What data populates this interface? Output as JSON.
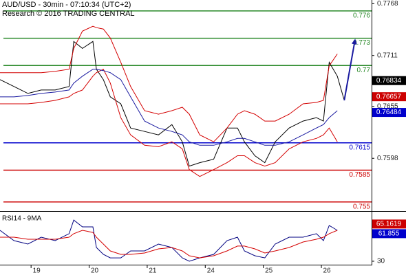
{
  "chart_data": [
    {
      "type": "line",
      "title": "AUD/USD - 30min - 07:10:34 (UTC+2)",
      "subtitle": "Research © 2016 TRADING CENTRAL",
      "x": [
        -0.63,
        -0.39,
        -0.15,
        0.08,
        0.32,
        0.56,
        0.64,
        0.79,
        0.97,
        1.03,
        1.15,
        1.27,
        1.45,
        1.62,
        1.86,
        2.1,
        2.33,
        2.51,
        2.63,
        2.81,
        3.05,
        3.28,
        3.46,
        3.58,
        3.76,
        3.93,
        4.11,
        4.35,
        4.59,
        4.82,
        4.94,
        5.04,
        5.18,
        5.3
      ],
      "xlim": [
        -0.63,
        5.77
      ],
      "ylim": [
        0.754,
        0.7772
      ],
      "yticks": [
        0.7768,
        0.7711,
        0.7655,
        0.7598
      ],
      "series": [
        {
          "color": "#000000",
          "values": [
            0.76845,
            0.76769,
            0.76693,
            0.76731,
            0.76731,
            0.76769,
            0.77264,
            0.77188,
            0.77264,
            0.76959,
            0.76845,
            0.76655,
            0.76579,
            0.76313,
            0.76275,
            0.76237,
            0.76351,
            0.76161,
            0.75894,
            0.75932,
            0.7597,
            0.76313,
            0.76313,
            0.76161,
            0.76008,
            0.75932,
            0.76161,
            0.76313,
            0.76389,
            0.76427,
            0.76389,
            0.77035,
            0.76883,
            0.76617
          ]
        },
        {
          "color": "#d40000",
          "values": [
            0.76921,
            0.76921,
            0.76921,
            0.76921,
            0.76936,
            0.76959,
            0.77188,
            0.77378,
            0.77431,
            0.77416,
            0.77401,
            0.77302,
            0.77035,
            0.76769,
            0.76503,
            0.76465,
            0.76503,
            0.76541,
            0.76465,
            0.76237,
            0.76161,
            0.76313,
            0.76465,
            0.76503,
            0.76465,
            0.76389,
            0.76389,
            0.76465,
            0.76579,
            0.76594,
            0.76617,
            0.76997,
            0.77127,
            null
          ]
        },
        {
          "color": "#d40000",
          "values": [
            0.76579,
            0.76579,
            0.76579,
            0.76594,
            0.76617,
            0.76655,
            0.76693,
            0.76731,
            0.76883,
            0.76921,
            0.76959,
            0.76807,
            0.76427,
            0.76237,
            0.76123,
            0.76107,
            0.76161,
            0.76084,
            0.75856,
            0.7578,
            0.75856,
            0.75932,
            0.76008,
            0.76008,
            0.75932,
            0.75894,
            0.75932,
            0.76084,
            0.76161,
            0.76199,
            0.76237,
            0.76313,
            0.76161,
            null
          ]
        },
        {
          "color": "#1a1aa0",
          "values": [
            0.76655,
            0.76655,
            0.7667,
            0.76693,
            0.76708,
            0.76731,
            0.76807,
            0.76883,
            0.76959,
            0.76959,
            0.76944,
            0.76921,
            0.76845,
            0.76655,
            0.76389,
            0.76313,
            0.76275,
            0.76237,
            0.76161,
            0.76123,
            0.76123,
            0.76161,
            0.76199,
            0.76199,
            0.76161,
            0.76123,
            0.76123,
            0.76161,
            0.76237,
            0.76313,
            0.76351,
            0.76427,
            0.76503,
            null
          ]
        }
      ],
      "forecast": {
        "color": "#1a1aa0",
        "x": [
          5.3,
          5.48
        ],
        "values": [
          0.76617,
          0.77264
        ]
      },
      "levels": [
        {
          "value": 0.776,
          "color": "#2a8a2a"
        },
        {
          "value": 0.773,
          "color": "#2a8a2a"
        },
        {
          "value": 0.77,
          "color": "#2a8a2a"
        },
        {
          "value": 0.7615,
          "color": "#0000cc"
        },
        {
          "value": 0.7585,
          "color": "#cc0000"
        },
        {
          "value": 0.755,
          "color": "#cc0000"
        }
      ],
      "price_tags": [
        {
          "value": 0.76834,
          "color": "#000000"
        },
        {
          "value": 0.76657,
          "color": "#cc0000"
        },
        {
          "value": 0.76484,
          "color": "#0000cc"
        }
      ]
    },
    {
      "type": "line",
      "title": "RSI14 - 9MA",
      "x": [
        -0.63,
        -0.39,
        -0.15,
        0.08,
        0.32,
        0.56,
        0.64,
        0.79,
        0.97,
        1.03,
        1.15,
        1.27,
        1.45,
        1.62,
        1.86,
        2.1,
        2.33,
        2.51,
        2.63,
        2.81,
        3.05,
        3.28,
        3.46,
        3.58,
        3.76,
        3.93,
        4.11,
        4.35,
        4.59,
        4.82,
        4.94,
        5.04,
        5.18,
        5.3
      ],
      "xlim": [
        -0.63,
        5.77
      ],
      "xticks": [
        {
          "value": 0,
          "label": "19"
        },
        {
          "value": 1,
          "label": "20"
        },
        {
          "value": 2,
          "label": "21"
        },
        {
          "value": 3,
          "label": "24"
        },
        {
          "value": 4,
          "label": "25"
        },
        {
          "value": 5,
          "label": "26"
        }
      ],
      "ylim": [
        26,
        84
      ],
      "yticks": [
        30
      ],
      "series": [
        {
          "color": "#000080",
          "values": [
            65.7,
            53.8,
            49.8,
            57.8,
            53.8,
            61.8,
            77.6,
            69.7,
            69.7,
            45.9,
            37.9,
            33.9,
            33.9,
            41.9,
            41.9,
            49.8,
            45.9,
            33.9,
            30.0,
            33.9,
            37.9,
            53.8,
            57.8,
            41.9,
            36.3,
            33.9,
            49.8,
            57.8,
            57.8,
            61.8,
            53.8,
            71.3,
            65.7,
            null
          ]
        },
        {
          "color": "#d40000",
          "values": [
            57.8,
            57.8,
            55.4,
            55.4,
            55.4,
            57.8,
            61.8,
            65.7,
            63.3,
            57.8,
            49.8,
            41.9,
            37.9,
            37.9,
            39.5,
            44.3,
            45.9,
            41.9,
            36.3,
            33.9,
            36.3,
            41.9,
            47.5,
            47.5,
            44.3,
            39.5,
            41.9,
            45.9,
            52.2,
            55.4,
            57.8,
            61.8,
            65.7,
            null
          ]
        }
      ],
      "price_tags": [
        {
          "value": 65.1619,
          "color": "#cc0000"
        },
        {
          "value": 61.855,
          "color": "#0000cc"
        }
      ]
    }
  ]
}
